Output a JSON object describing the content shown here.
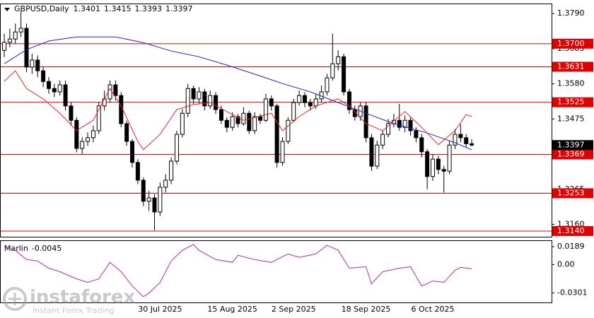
{
  "chart_data": [
    {
      "type": "candlestick",
      "title": "GBPUSD,Daily",
      "categories": [
        null,
        null,
        null,
        null,
        null,
        null,
        null,
        null,
        null,
        null,
        null,
        null,
        null,
        null,
        null,
        null,
        null,
        null,
        null,
        null,
        null,
        null,
        null,
        null,
        null,
        null,
        null,
        null,
        "30 Jul 2025",
        null,
        null,
        null,
        null,
        null,
        null,
        null,
        null,
        null,
        null,
        null,
        null,
        "15 Aug 2025",
        null,
        null,
        null,
        null,
        null,
        null,
        null,
        null,
        null,
        null,
        "2 Sep 2025",
        null,
        null,
        null,
        null,
        null,
        null,
        null,
        null,
        null,
        null,
        null,
        null,
        "18 Sep 2025",
        null,
        null,
        null,
        null,
        null,
        null,
        null,
        null,
        null,
        null,
        null,
        "6 Oct 2025",
        null,
        null,
        null,
        null,
        null,
        null,
        null
      ],
      "open": [
        1.368,
        1.3704,
        1.3714,
        1.3735,
        1.3746,
        1.363,
        1.3651,
        1.3619,
        1.3587,
        1.3566,
        1.3556,
        1.3577,
        1.3514,
        1.3471,
        1.3387,
        1.3408,
        1.3419,
        1.344,
        1.3514,
        1.3535,
        1.3577,
        1.3545,
        1.3461,
        1.3408,
        1.3345,
        1.3292,
        1.3229,
        1.3239,
        1.3197,
        1.3271,
        1.3292,
        1.3349,
        1.3429,
        1.3492,
        1.3566,
        1.3535,
        1.3556,
        1.3514,
        1.3545,
        1.3503,
        1.3471,
        1.345,
        1.3482,
        1.3461,
        1.3492,
        1.344,
        1.3482,
        1.3471,
        1.3535,
        1.3514,
        1.3345,
        1.3408,
        1.3471,
        1.3524,
        1.3545,
        1.3524,
        1.3514,
        1.3535,
        1.3556,
        1.3598,
        1.364,
        1.3661,
        1.3556,
        1.3503,
        1.3482,
        1.3514,
        1.3419,
        1.3334,
        1.3397,
        1.3429,
        1.3461,
        1.3471,
        1.345,
        1.3471,
        1.344,
        1.3419,
        1.3377,
        1.3303,
        1.3355,
        1.3324,
        1.3319,
        1.3397,
        1.3429,
        1.3419,
        1.3401
      ],
      "high": [
        1.373,
        1.3745,
        1.376,
        1.3798,
        1.376,
        1.367,
        1.3665,
        1.363,
        1.36,
        1.358,
        1.359,
        1.359,
        1.3525,
        1.348,
        1.342,
        1.3435,
        1.3455,
        1.3525,
        1.356,
        1.359,
        1.359,
        1.3555,
        1.347,
        1.3415,
        1.3355,
        1.33,
        1.326,
        1.325,
        1.3285,
        1.331,
        1.336,
        1.344,
        1.3505,
        1.358,
        1.3575,
        1.357,
        1.3565,
        1.356,
        1.3555,
        1.3515,
        1.348,
        1.3495,
        1.349,
        1.351,
        1.35,
        1.3495,
        1.349,
        1.355,
        1.3545,
        1.352,
        1.342,
        1.348,
        1.3535,
        1.356,
        1.3555,
        1.3535,
        1.355,
        1.3575,
        1.361,
        1.373,
        1.368,
        1.367,
        1.3565,
        1.3515,
        1.3525,
        1.3525,
        1.343,
        1.341,
        1.344,
        1.3475,
        1.349,
        1.352,
        1.3485,
        1.348,
        1.345,
        1.343,
        1.3385,
        1.337,
        1.3365,
        1.3335,
        1.341,
        1.3445,
        1.346,
        1.343,
        1.3415
      ],
      "low": [
        1.366,
        1.369,
        1.37,
        1.372,
        1.3615,
        1.361,
        1.36,
        1.357,
        1.355,
        1.354,
        1.3545,
        1.35,
        1.3455,
        1.3375,
        1.337,
        1.3395,
        1.3405,
        1.343,
        1.35,
        1.3525,
        1.353,
        1.345,
        1.3395,
        1.333,
        1.328,
        1.3215,
        1.32,
        1.3142,
        1.3185,
        1.3255,
        1.328,
        1.334,
        1.342,
        1.348,
        1.352,
        1.352,
        1.35,
        1.3505,
        1.349,
        1.346,
        1.3435,
        1.344,
        1.345,
        1.3455,
        1.343,
        1.343,
        1.346,
        1.3465,
        1.35,
        1.333,
        1.3335,
        1.34,
        1.3465,
        1.3515,
        1.351,
        1.35,
        1.3505,
        1.3525,
        1.3545,
        1.359,
        1.362,
        1.3545,
        1.349,
        1.347,
        1.347,
        1.3405,
        1.332,
        1.3325,
        1.3385,
        1.342,
        1.345,
        1.344,
        1.3435,
        1.3425,
        1.3405,
        1.336,
        1.3265,
        1.329,
        1.331,
        1.3255,
        1.331,
        1.3385,
        1.3405,
        1.339,
        1.3393
      ],
      "close": [
        1.3704,
        1.3714,
        1.3735,
        1.3746,
        1.363,
        1.3651,
        1.3619,
        1.3587,
        1.3566,
        1.3556,
        1.3577,
        1.3514,
        1.3471,
        1.3387,
        1.3408,
        1.3419,
        1.344,
        1.3514,
        1.3535,
        1.3577,
        1.3545,
        1.3461,
        1.3408,
        1.3345,
        1.3292,
        1.3229,
        1.3239,
        1.3197,
        1.3271,
        1.3292,
        1.3349,
        1.3429,
        1.3492,
        1.3566,
        1.3535,
        1.3556,
        1.3514,
        1.3545,
        1.3503,
        1.3471,
        1.345,
        1.3482,
        1.3461,
        1.3492,
        1.344,
        1.3482,
        1.3471,
        1.3535,
        1.3514,
        1.3345,
        1.3408,
        1.3471,
        1.3524,
        1.3545,
        1.3524,
        1.3514,
        1.3535,
        1.3556,
        1.3598,
        1.364,
        1.3661,
        1.3556,
        1.3503,
        1.3482,
        1.3514,
        1.3419,
        1.3334,
        1.3397,
        1.3429,
        1.3461,
        1.3471,
        1.345,
        1.3471,
        1.344,
        1.3419,
        1.3377,
        1.3303,
        1.3355,
        1.3324,
        1.3319,
        1.3397,
        1.3429,
        1.3419,
        1.3401,
        1.3397
      ],
      "up_color": "#ffffff",
      "down_color": "#000000",
      "lines": [
        {
          "color": "#2323c8",
          "x": [
            0,
            4,
            8,
            13,
            20,
            25,
            30,
            35,
            40,
            45,
            50,
            55,
            60,
            65,
            70,
            76,
            81,
            84
          ],
          "values": [
            1.364,
            1.3682,
            1.3708,
            1.372,
            1.372,
            1.3703,
            1.3678,
            1.3661,
            1.3636,
            1.3609,
            1.3581,
            1.3556,
            1.3524,
            1.3492,
            1.3461,
            1.3433,
            1.3404,
            1.3383
          ]
        },
        {
          "color": "#e02828",
          "x": [
            0,
            2,
            4,
            7,
            10,
            13,
            16,
            19,
            21,
            24,
            25,
            28,
            31,
            34,
            37,
            40,
            43,
            48,
            50,
            53,
            56,
            60,
            62,
            65,
            68,
            72,
            75,
            78,
            81,
            83,
            84
          ],
          "values": [
            1.3587,
            1.3619,
            1.3566,
            1.3535,
            1.3492,
            1.344,
            1.3471,
            1.3566,
            1.3514,
            1.3408,
            1.3383,
            1.3429,
            1.3503,
            1.3518,
            1.3524,
            1.3497,
            1.3471,
            1.3492,
            1.344,
            1.3482,
            1.3514,
            1.3535,
            1.3514,
            1.3461,
            1.344,
            1.3497,
            1.345,
            1.3398,
            1.344,
            1.3488,
            1.3482
          ]
        }
      ],
      "levels": [
        {
          "value": 1.37,
          "label": "1.3700"
        },
        {
          "value": 1.3631,
          "label": "1.3631"
        },
        {
          "value": 1.3525,
          "label": "1.3525"
        },
        {
          "value": 1.3369,
          "label": "1.3369"
        },
        {
          "value": 1.3253,
          "label": "1.3253"
        },
        {
          "value": 1.314,
          "label": "1.3140"
        }
      ],
      "level_color": "#e00000",
      "ylim": [
        1.3123,
        1.382
      ],
      "yticks": [
        {
          "value": 1.379,
          "label": "1.3790"
        },
        1.3685,
        {
          "value": 1.358,
          "label": "1.3580"
        },
        1.3475,
        1.3265,
        {
          "value": 1.316,
          "label": "1.3160"
        }
      ]
    },
    {
      "type": "line",
      "title": "Marlin",
      "series": [
        {
          "color": "#b02ab0",
          "x": [
            0,
            2,
            4,
            6,
            8,
            10,
            13,
            15,
            17,
            19,
            21,
            23,
            25,
            26,
            28,
            30,
            32,
            34,
            35,
            38,
            41,
            42,
            45,
            48,
            51,
            53,
            56,
            58,
            60,
            62,
            65,
            66,
            68,
            71,
            73,
            75,
            77,
            79,
            81,
            82,
            84
          ],
          "values": [
            0.0189,
            0.0151,
            0.0053,
            0.0038,
            -0.0038,
            -0.0076,
            -0.0151,
            -0.0189,
            -0.0151,
            0.0023,
            -0.0076,
            -0.0227,
            -0.034,
            -0.0302,
            -0.0189,
            0.0038,
            0.0151,
            0.0212,
            0.0151,
            0.0053,
            0.0023,
            0.0098,
            0.0053,
            0.0023,
            0.0113,
            0.0076,
            0.0113,
            0.0204,
            0.0151,
            -0.0038,
            -0.0023,
            -0.0204,
            -0.0076,
            -0.0038,
            -0.0023,
            -0.0227,
            -0.0174,
            -0.0189,
            -0.006,
            -0.003,
            -0.0045
          ]
        }
      ],
      "ylim": [
        -0.0401,
        0.0257
      ],
      "yticks": [
        0.0189,
        {
          "value": 0,
          "label": "0.00"
        },
        -0.0301
      ]
    }
  ],
  "watermark": {
    "brand": "instaforex",
    "tagline": "Instant Forex Trading"
  }
}
